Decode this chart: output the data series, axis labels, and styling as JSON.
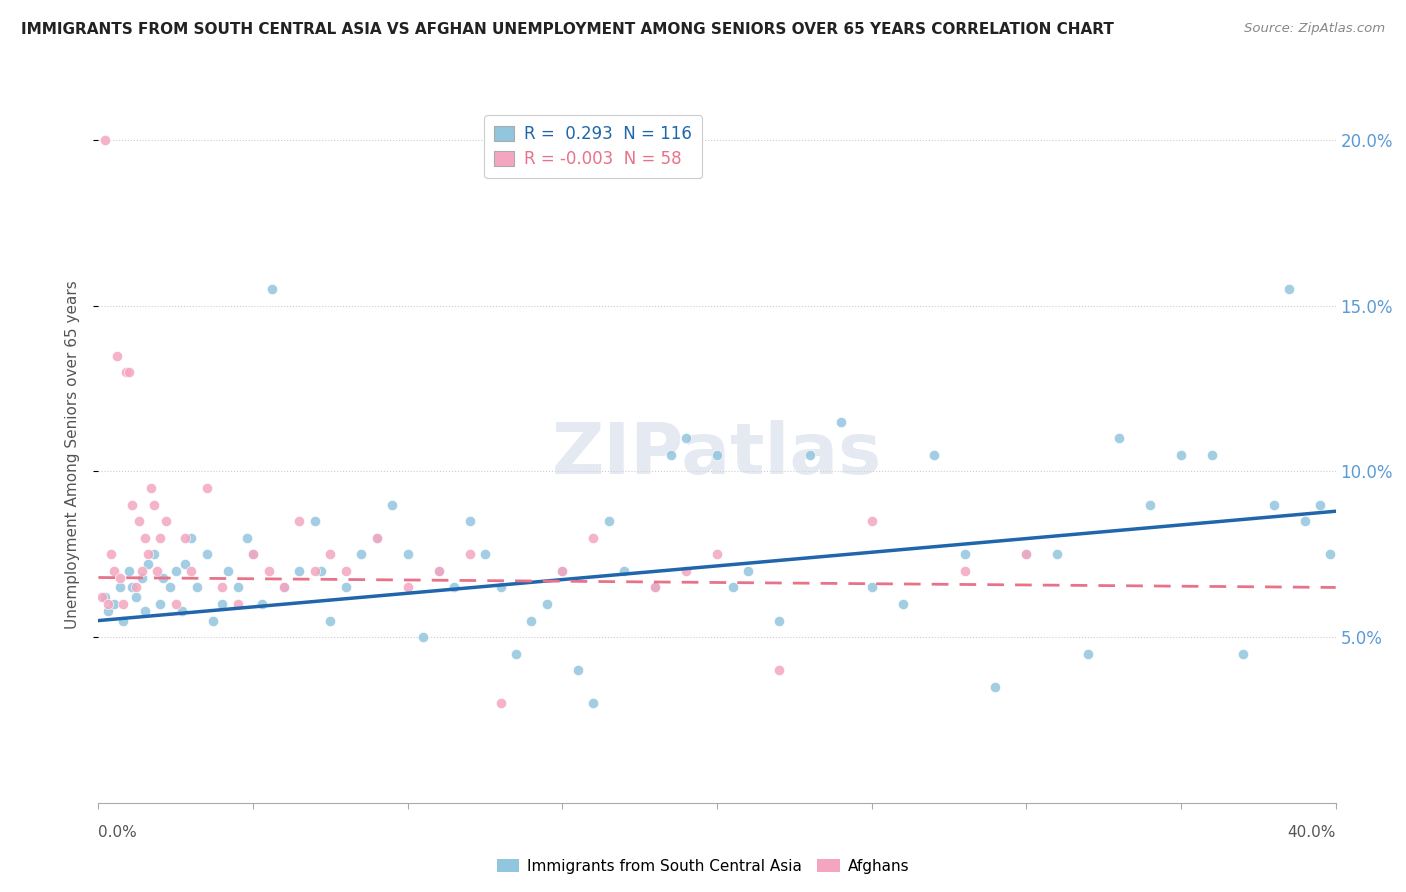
{
  "title": "IMMIGRANTS FROM SOUTH CENTRAL ASIA VS AFGHAN UNEMPLOYMENT AMONG SENIORS OVER 65 YEARS CORRELATION CHART",
  "source": "Source: ZipAtlas.com",
  "ylabel": "Unemployment Among Seniors over 65 years",
  "legend_blue_r": " 0.293",
  "legend_blue_n": "116",
  "legend_pink_r": "-0.003",
  "legend_pink_n": "58",
  "legend_label1": "Immigrants from South Central Asia",
  "legend_label2": "Afghans",
  "blue_color": "#92c5de",
  "pink_color": "#f4a6c0",
  "blue_line_color": "#2166ac",
  "pink_line_color": "#e8728a",
  "watermark": "ZIPatlas",
  "blue_scatter_x": [
    0.2,
    0.3,
    0.5,
    0.7,
    0.8,
    1.0,
    1.1,
    1.2,
    1.4,
    1.5,
    1.6,
    1.8,
    2.0,
    2.1,
    2.3,
    2.5,
    2.7,
    2.8,
    3.0,
    3.2,
    3.5,
    3.7,
    4.0,
    4.2,
    4.5,
    4.8,
    5.0,
    5.3,
    5.6,
    6.0,
    6.5,
    7.0,
    7.2,
    7.5,
    8.0,
    8.5,
    9.0,
    9.5,
    10.0,
    10.5,
    11.0,
    11.5,
    12.0,
    12.5,
    13.0,
    13.5,
    14.0,
    14.5,
    15.0,
    15.5,
    16.0,
    16.5,
    17.0,
    18.0,
    18.5,
    19.0,
    20.0,
    20.5,
    21.0,
    22.0,
    23.0,
    24.0,
    25.0,
    26.0,
    27.0,
    28.0,
    29.0,
    30.0,
    31.0,
    32.0,
    33.0,
    34.0,
    35.0,
    36.0,
    37.0,
    38.0,
    38.5,
    39.0,
    39.5,
    39.8
  ],
  "blue_scatter_y": [
    6.2,
    5.8,
    6.0,
    6.5,
    5.5,
    7.0,
    6.5,
    6.2,
    6.8,
    5.8,
    7.2,
    7.5,
    6.0,
    6.8,
    6.5,
    7.0,
    5.8,
    7.2,
    8.0,
    6.5,
    7.5,
    5.5,
    6.0,
    7.0,
    6.5,
    8.0,
    7.5,
    6.0,
    15.5,
    6.5,
    7.0,
    8.5,
    7.0,
    5.5,
    6.5,
    7.5,
    8.0,
    9.0,
    7.5,
    5.0,
    7.0,
    6.5,
    8.5,
    7.5,
    6.5,
    4.5,
    5.5,
    6.0,
    7.0,
    4.0,
    3.0,
    8.5,
    7.0,
    6.5,
    10.5,
    11.0,
    10.5,
    6.5,
    7.0,
    5.5,
    10.5,
    11.5,
    6.5,
    6.0,
    10.5,
    7.5,
    3.5,
    7.5,
    7.5,
    4.5,
    11.0,
    9.0,
    10.5,
    10.5,
    4.5,
    9.0,
    15.5,
    8.5,
    9.0,
    7.5
  ],
  "pink_scatter_x": [
    0.1,
    0.2,
    0.3,
    0.4,
    0.5,
    0.6,
    0.7,
    0.8,
    0.9,
    1.0,
    1.1,
    1.2,
    1.3,
    1.4,
    1.5,
    1.6,
    1.7,
    1.8,
    1.9,
    2.0,
    2.2,
    2.5,
    2.8,
    3.0,
    3.5,
    4.0,
    4.5,
    5.0,
    5.5,
    6.0,
    6.5,
    7.0,
    7.5,
    8.0,
    9.0,
    10.0,
    11.0,
    12.0,
    13.0,
    15.0,
    16.0,
    18.0,
    19.0,
    20.0,
    22.0,
    25.0,
    28.0,
    30.0
  ],
  "pink_scatter_y": [
    6.2,
    20.0,
    6.0,
    7.5,
    7.0,
    13.5,
    6.8,
    6.0,
    13.0,
    13.0,
    9.0,
    6.5,
    8.5,
    7.0,
    8.0,
    7.5,
    9.5,
    9.0,
    7.0,
    8.0,
    8.5,
    6.0,
    8.0,
    7.0,
    9.5,
    6.5,
    6.0,
    7.5,
    7.0,
    6.5,
    8.5,
    7.0,
    7.5,
    7.0,
    8.0,
    6.5,
    7.0,
    7.5,
    3.0,
    7.0,
    8.0,
    6.5,
    7.0,
    7.5,
    4.0,
    8.5,
    7.0,
    7.5
  ],
  "xlim": [
    0,
    40
  ],
  "ylim": [
    0,
    21
  ],
  "blue_trend_x": [
    0,
    40
  ],
  "blue_trend_y": [
    5.5,
    8.8
  ],
  "pink_trend_y": [
    6.8,
    6.5
  ]
}
